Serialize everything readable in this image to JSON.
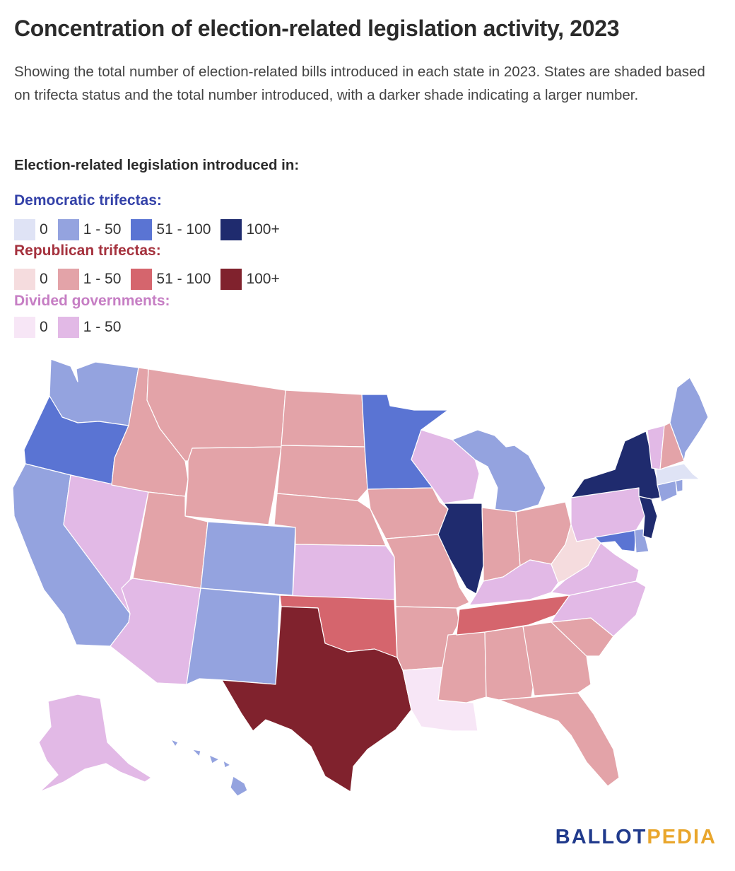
{
  "title": "Concentration of election-related legislation activity, 2023",
  "subtitle": "Showing the total number of election-related bills introduced in each state in 2023. States are shaded based on trifecta status and the total number introduced, with a darker shade indicating a larger number.",
  "legend": {
    "heading": "Election-related legislation introduced in:",
    "democratic": {
      "title": "Democratic trifectas:",
      "items": [
        {
          "label": "0",
          "color": "#dfe3f5"
        },
        {
          "label": "1 - 50",
          "color": "#94a3df"
        },
        {
          "label": "51 - 100",
          "color": "#5a74d3"
        },
        {
          "label": "100+",
          "color": "#1f2b6e"
        }
      ]
    },
    "republican": {
      "title": "Republican trifectas:",
      "items": [
        {
          "label": "0",
          "color": "#f5dcde"
        },
        {
          "label": "1 - 50",
          "color": "#e3a3a8"
        },
        {
          "label": "51 - 100",
          "color": "#d5656d"
        },
        {
          "label": "100+",
          "color": "#80222d"
        }
      ]
    },
    "divided": {
      "title": "Divided governments:",
      "items": [
        {
          "label": "0",
          "color": "#f7e6f6"
        },
        {
          "label": "1 - 50",
          "color": "#e2b9e6"
        }
      ]
    }
  },
  "map": {
    "states": {
      "WA": "dem_1_50",
      "OR": "dem_51_100",
      "CA": "dem_1_50",
      "CO": "dem_1_50",
      "NM": "dem_1_50",
      "MN": "dem_51_100",
      "MI": "dem_1_50",
      "IL": "dem_100_plus",
      "NY": "dem_100_plus",
      "NJ": "dem_100_plus",
      "MD": "dem_51_100",
      "DE": "dem_1_50",
      "MA": "dem_0",
      "CT": "dem_1_50",
      "RI": "dem_1_50",
      "ME": "dem_1_50",
      "HI": "dem_1_50",
      "ID": "rep_1_50",
      "MT": "rep_1_50",
      "WY": "rep_1_50",
      "UT": "rep_1_50",
      "ND": "rep_1_50",
      "SD": "rep_1_50",
      "NE": "rep_1_50",
      "IA": "rep_1_50",
      "MO": "rep_1_50",
      "AR": "rep_1_50",
      "MS": "rep_1_50",
      "AL": "rep_1_50",
      "GA": "rep_1_50",
      "FL": "rep_1_50",
      "SC": "rep_1_50",
      "IN": "rep_1_50",
      "OH": "rep_1_50",
      "NH": "rep_1_50",
      "WV": "rep_0",
      "OK": "rep_51_100",
      "TN": "rep_51_100",
      "TX": "rep_100_plus",
      "NV": "div_1_50",
      "AZ": "div_1_50",
      "KS": "div_1_50",
      "WI": "div_1_50",
      "PA": "div_1_50",
      "VA": "div_1_50",
      "NC": "div_1_50",
      "KY": "div_1_50",
      "VT": "div_1_50",
      "AK": "div_1_50",
      "LA": "div_0"
    }
  },
  "logo": {
    "part1": "BALLOT",
    "part2": "PEDIA"
  }
}
